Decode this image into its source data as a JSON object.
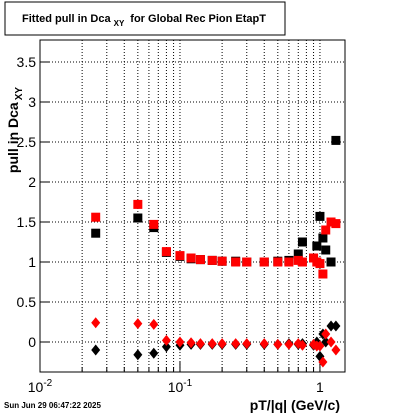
{
  "chart_data": {
    "type": "scatter",
    "title": "Fitted pull in Dca",
    "title_sub": "XY",
    "title_rest": "for Global Rec Pion EtapT",
    "x_label": "pT/|q| (GeV/c)",
    "y_label": "pull in Dca",
    "y_label_sub": "XY",
    "footer": "Sun Jun 29 06:47:22 2025",
    "log_x": true,
    "grid": true,
    "xlim": [
      0.01,
      1.51
    ],
    "ylim": [
      -0.375,
      3.775
    ],
    "xticks": [
      {
        "value": 0.01,
        "label": "10",
        "exponent": "-2"
      },
      {
        "value": 0.1,
        "label": "10",
        "exponent": "-1"
      },
      1
    ],
    "yticks": [
      0,
      0.5,
      1,
      1.5,
      2,
      2.5,
      3,
      3.5
    ],
    "x": [
      0.025,
      0.05,
      0.065,
      0.08,
      0.1,
      0.12,
      0.14,
      0.17,
      0.2,
      0.25,
      0.3,
      0.4,
      0.5,
      0.6,
      0.7,
      0.75,
      0.9,
      0.95,
      1.0,
      1.05,
      1.1,
      1.2,
      1.3
    ],
    "series": [
      {
        "name": "black-square",
        "marker": "square",
        "color": "#000000",
        "values": [
          1.36,
          1.55,
          1.43,
          1.12,
          1.07,
          1.04,
          1.03,
          1.02,
          1.01,
          1.01,
          1.0,
          1.0,
          1.01,
          1.02,
          1.1,
          1.25,
          1.05,
          1.2,
          1.57,
          1.3,
          1.15,
          1.0,
          2.52
        ]
      },
      {
        "name": "red-square",
        "marker": "square",
        "color": "#ff0000",
        "values": [
          1.56,
          1.72,
          1.47,
          1.13,
          1.08,
          1.05,
          1.03,
          1.02,
          1.01,
          1.0,
          1.0,
          1.0,
          1.0,
          1.0,
          1.02,
          1.0,
          1.05,
          1.0,
          0.98,
          0.85,
          1.4,
          1.5,
          1.48
        ]
      },
      {
        "name": "black-diamond",
        "marker": "diamond",
        "color": "#000000",
        "values": [
          -0.1,
          -0.16,
          -0.14,
          -0.06,
          -0.04,
          -0.03,
          -0.03,
          -0.03,
          -0.03,
          -0.03,
          -0.03,
          -0.03,
          -0.03,
          -0.02,
          -0.03,
          -0.02,
          -0.04,
          0.0,
          -0.18,
          0.1,
          0.0,
          0.2,
          0.2
        ]
      },
      {
        "name": "red-diamond",
        "marker": "diamond",
        "color": "#ff0000",
        "values": [
          0.24,
          0.23,
          0.22,
          0.02,
          0.0,
          -0.01,
          -0.02,
          -0.02,
          -0.02,
          -0.02,
          -0.02,
          -0.02,
          -0.03,
          -0.03,
          -0.02,
          -0.04,
          -0.03,
          -0.05,
          -0.05,
          -0.25,
          0.1,
          0.0,
          -0.1
        ]
      }
    ]
  }
}
